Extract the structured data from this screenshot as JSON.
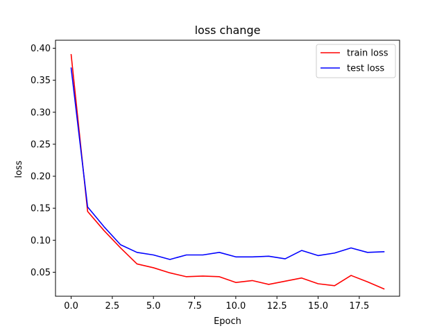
{
  "chart_data": {
    "type": "line",
    "title": "loss change",
    "xlabel": "Epoch",
    "ylabel": "loss",
    "xlim": [
      -0.95,
      19.95
    ],
    "ylim": [
      0.0125,
      0.4125
    ],
    "xticks": [
      0,
      2.5,
      5,
      7.5,
      10,
      12.5,
      15,
      17.5
    ],
    "xtick_labels": [
      "0.0",
      "2.5",
      "5.0",
      "7.5",
      "10.0",
      "12.5",
      "15.0",
      "17.5"
    ],
    "yticks": [
      0.05,
      0.1,
      0.15,
      0.2,
      0.25,
      0.3,
      0.35,
      0.4
    ],
    "ytick_labels": [
      "0.05",
      "0.10",
      "0.15",
      "0.20",
      "0.25",
      "0.30",
      "0.35",
      "0.40"
    ],
    "grid": false,
    "legend_position": "top-right",
    "x": [
      0,
      1,
      2,
      3,
      4,
      5,
      6,
      7,
      8,
      9,
      10,
      11,
      12,
      13,
      14,
      15,
      16,
      17,
      18,
      19
    ],
    "series": [
      {
        "name": "train loss",
        "color": "#ff0000",
        "values": [
          0.39,
          0.145,
          0.115,
          0.088,
          0.063,
          0.057,
          0.049,
          0.043,
          0.044,
          0.043,
          0.034,
          0.037,
          0.031,
          0.036,
          0.041,
          0.032,
          0.029,
          0.045,
          0.035,
          0.024
        ]
      },
      {
        "name": "test loss",
        "color": "#0000ff",
        "values": [
          0.369,
          0.152,
          0.121,
          0.093,
          0.081,
          0.077,
          0.07,
          0.077,
          0.077,
          0.081,
          0.074,
          0.074,
          0.075,
          0.071,
          0.084,
          0.076,
          0.08,
          0.088,
          0.081,
          0.082
        ]
      }
    ]
  }
}
